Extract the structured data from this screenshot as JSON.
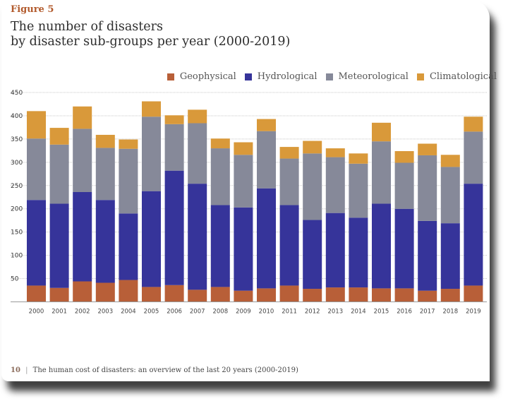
{
  "figure_label": "Figure 5",
  "title_line1": "The number of disasters",
  "title_line2": "by disaster sub-groups per year (2000-2019)",
  "footer": {
    "page": "10",
    "sep": "|",
    "text": "The human cost of disasters: an overview of the last 20 years (2000-2019)"
  },
  "chart_data": {
    "type": "bar",
    "stacked": true,
    "title": "The number of disasters by disaster sub-groups per year (2000-2019)",
    "xlabel": "",
    "ylabel": "",
    "ylim": [
      0,
      450
    ],
    "yticks": [
      50,
      100,
      150,
      200,
      250,
      300,
      350,
      400,
      450
    ],
    "grid": true,
    "legend_position": "top-right",
    "categories": [
      "2000",
      "2001",
      "2002",
      "2003",
      "2004",
      "2005",
      "2006",
      "2007",
      "2008",
      "2009",
      "2010",
      "2011",
      "2012",
      "2013",
      "2014",
      "2015",
      "2016",
      "2017",
      "2018",
      "2019"
    ],
    "series": [
      {
        "name": "Geophysical",
        "color": "#b85f38",
        "values": [
          35,
          30,
          44,
          41,
          47,
          32,
          36,
          26,
          32,
          24,
          29,
          35,
          28,
          31,
          31,
          29,
          29,
          24,
          28,
          35
        ]
      },
      {
        "name": "Hydrological",
        "color": "#36349a",
        "values": [
          184,
          181,
          192,
          178,
          143,
          206,
          246,
          228,
          176,
          179,
          215,
          173,
          148,
          160,
          150,
          182,
          171,
          150,
          141,
          219
        ]
      },
      {
        "name": "Meteorological",
        "color": "#868999",
        "values": [
          132,
          127,
          136,
          112,
          139,
          160,
          100,
          130,
          122,
          113,
          123,
          100,
          143,
          120,
          116,
          134,
          99,
          141,
          121,
          112
        ]
      },
      {
        "name": "Climatological",
        "color": "#d9993a",
        "values": [
          59,
          36,
          48,
          28,
          20,
          33,
          19,
          29,
          21,
          27,
          26,
          25,
          27,
          19,
          22,
          40,
          25,
          25,
          26,
          32
        ]
      }
    ]
  }
}
